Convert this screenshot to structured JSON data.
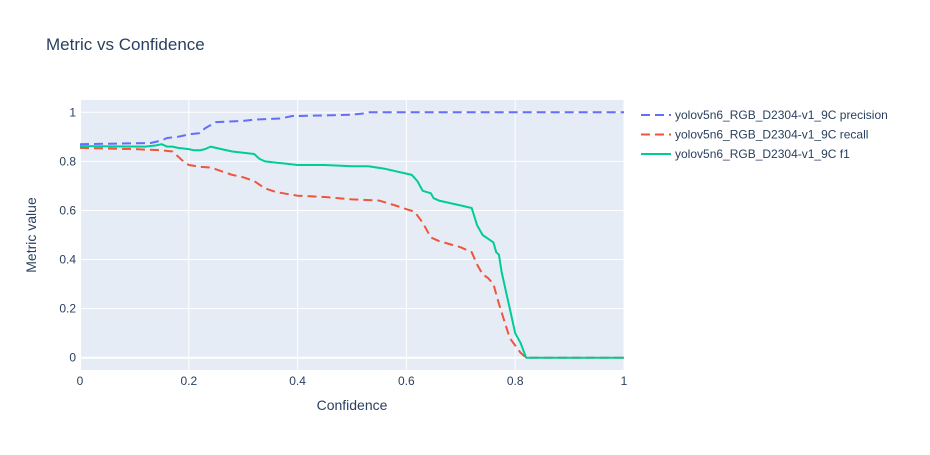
{
  "chart_data": {
    "type": "line",
    "title": "Metric vs Confidence",
    "xlabel": "Confidence",
    "ylabel": "Metric value",
    "xlim": [
      0,
      1
    ],
    "ylim": [
      -0.05,
      1.05
    ],
    "xticks": [
      0,
      0.2,
      0.4,
      0.6,
      0.8,
      1
    ],
    "xtick_labels": [
      "0",
      "0.2",
      "0.4",
      "0.6",
      "0.8",
      "1"
    ],
    "yticks": [
      0,
      0.2,
      0.4,
      0.6,
      0.8,
      1
    ],
    "ytick_labels": [
      "0",
      "0.2",
      "0.4",
      "0.6",
      "0.8",
      "1"
    ],
    "grid": true,
    "legend_position": "right",
    "series": [
      {
        "name": "yolov5n6_RGB_D2304-v1_9C precision",
        "color": "#636efa",
        "dash": "dash",
        "x": [
          0,
          0.13,
          0.15,
          0.16,
          0.18,
          0.19,
          0.2,
          0.22,
          0.23,
          0.25,
          0.3,
          0.32,
          0.34,
          0.37,
          0.39,
          0.4,
          0.44,
          0.5,
          0.52,
          0.53,
          0.6,
          0.7,
          0.8,
          0.82,
          0.9,
          1
        ],
        "y": [
          0.87,
          0.875,
          0.885,
          0.895,
          0.9,
          0.905,
          0.91,
          0.915,
          0.935,
          0.96,
          0.965,
          0.97,
          0.972,
          0.975,
          0.985,
          0.985,
          0.987,
          0.99,
          0.995,
          1,
          1,
          1,
          1,
          1,
          1,
          1
        ]
      },
      {
        "name": "yolov5n6_RGB_D2304-v1_9C recall",
        "color": "#ef553b",
        "dash": "dash",
        "x": [
          0,
          0.1,
          0.15,
          0.17,
          0.19,
          0.2,
          0.22,
          0.24,
          0.26,
          0.28,
          0.3,
          0.32,
          0.34,
          0.36,
          0.4,
          0.45,
          0.5,
          0.55,
          0.58,
          0.6,
          0.615,
          0.63,
          0.645,
          0.66,
          0.7,
          0.72,
          0.73,
          0.74,
          0.75,
          0.76,
          0.77,
          0.78,
          0.79,
          0.8,
          0.81,
          0.82,
          0.85,
          0.9,
          1
        ],
        "y": [
          0.855,
          0.85,
          0.845,
          0.84,
          0.8,
          0.785,
          0.778,
          0.775,
          0.76,
          0.745,
          0.735,
          0.72,
          0.69,
          0.675,
          0.66,
          0.655,
          0.645,
          0.64,
          0.62,
          0.605,
          0.595,
          0.55,
          0.49,
          0.475,
          0.45,
          0.43,
          0.38,
          0.34,
          0.325,
          0.3,
          0.22,
          0.15,
          0.08,
          0.05,
          0.02,
          0,
          0,
          0,
          0
        ]
      },
      {
        "name": "yolov5n6_RGB_D2304-v1_9C f1",
        "color": "#00cc96",
        "dash": "solid",
        "x": [
          0,
          0.12,
          0.14,
          0.15,
          0.16,
          0.17,
          0.18,
          0.2,
          0.21,
          0.22,
          0.23,
          0.24,
          0.25,
          0.26,
          0.28,
          0.3,
          0.32,
          0.33,
          0.34,
          0.36,
          0.38,
          0.4,
          0.45,
          0.5,
          0.53,
          0.56,
          0.58,
          0.6,
          0.61,
          0.62,
          0.63,
          0.645,
          0.65,
          0.66,
          0.7,
          0.72,
          0.73,
          0.74,
          0.75,
          0.76,
          0.765,
          0.77,
          0.775,
          0.78,
          0.79,
          0.8,
          0.81,
          0.82,
          0.85,
          0.9,
          1
        ],
        "y": [
          0.862,
          0.86,
          0.865,
          0.87,
          0.86,
          0.86,
          0.855,
          0.85,
          0.845,
          0.845,
          0.85,
          0.86,
          0.855,
          0.85,
          0.84,
          0.835,
          0.83,
          0.81,
          0.8,
          0.795,
          0.79,
          0.785,
          0.785,
          0.78,
          0.78,
          0.77,
          0.76,
          0.75,
          0.745,
          0.72,
          0.68,
          0.67,
          0.65,
          0.64,
          0.62,
          0.61,
          0.54,
          0.5,
          0.485,
          0.47,
          0.43,
          0.42,
          0.35,
          0.3,
          0.2,
          0.1,
          0.06,
          0,
          0,
          0,
          0
        ]
      }
    ]
  }
}
